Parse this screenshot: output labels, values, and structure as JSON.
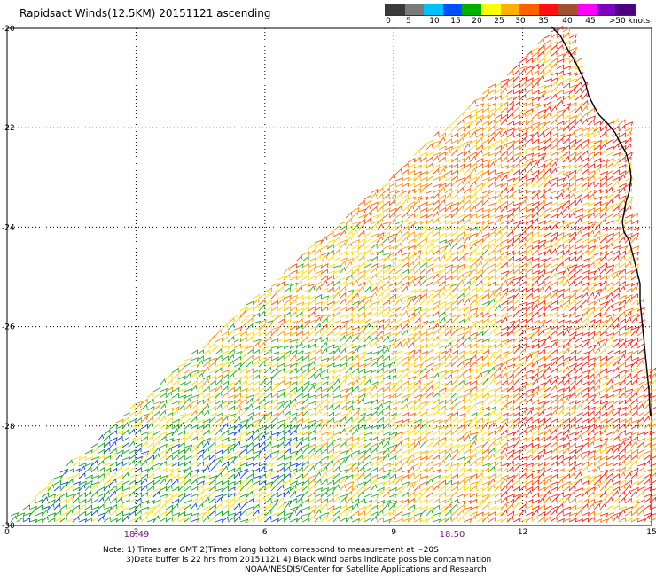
{
  "title": "Rapidsact Winds(12.5KM) 20151121 ascending",
  "legend": {
    "labels": [
      "0",
      "5",
      "10",
      "15",
      "20",
      "25",
      "30",
      "35",
      "40",
      "45",
      ">50 knots"
    ],
    "colors": [
      "#3a3a3a",
      "#7a7a7a",
      "#00bfff",
      "#0050ff",
      "#00b000",
      "#ffff00",
      "#ffb000",
      "#ff6000",
      "#ff1010",
      "#a05030",
      "#ff00ff",
      "#8000c0",
      "#4a0080"
    ]
  },
  "axes": {
    "y_ticks": [
      "-20",
      "-22",
      "-24",
      "-26",
      "-28",
      "-30"
    ],
    "x_ticks": [
      "0",
      "3",
      "6",
      "9",
      "12",
      "15"
    ]
  },
  "times": [
    "18:49",
    "18:50"
  ],
  "notes": [
    "Note: 1) Times are GMT 2)Times along bottom correspond to measurement at ~20S",
    "3)Data buffer is 22 hrs from 20151121 4) Black wind barbs indicate possible contamination",
    "NOAA/NESDIS/Center for Satellite Applications and Research"
  ]
}
